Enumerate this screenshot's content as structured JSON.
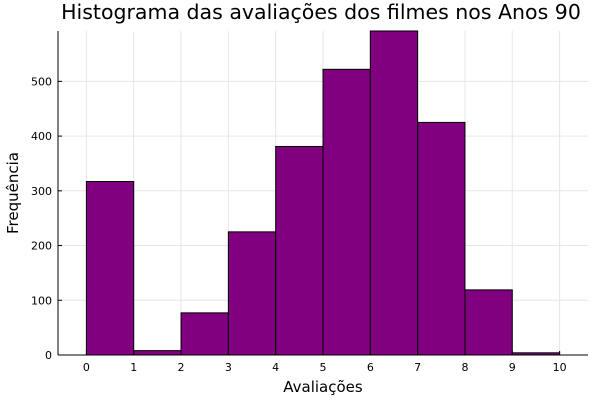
{
  "chart_data": {
    "type": "bar",
    "title": "Histograma das avaliações dos filmes nos Anos 90",
    "xlabel": "Avaliações",
    "ylabel": "Frequência",
    "bin_edges": [
      0,
      1,
      2,
      3,
      4,
      5,
      6,
      7,
      8,
      9,
      10
    ],
    "values": [
      317,
      8,
      77,
      225,
      381,
      522,
      592,
      425,
      119,
      4
    ],
    "xlim": [
      -0.6,
      10.6
    ],
    "ylim": [
      0,
      592
    ],
    "xticks": [
      0,
      1,
      2,
      3,
      4,
      5,
      6,
      7,
      8,
      9,
      10
    ],
    "yticks": [
      0,
      100,
      200,
      300,
      400,
      500
    ],
    "grid": true,
    "legend": "none",
    "bar_color": "#800080"
  }
}
